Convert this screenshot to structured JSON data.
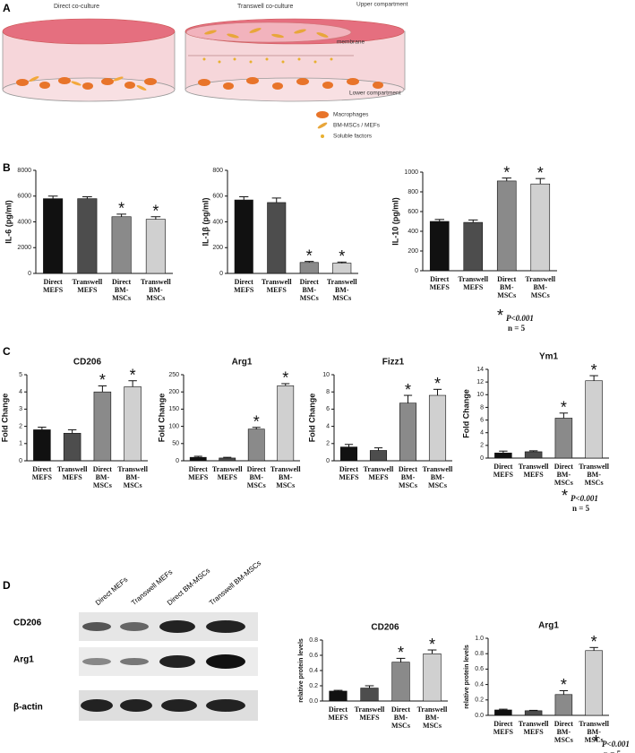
{
  "panel_labels": [
    "A",
    "B",
    "C",
    "D"
  ],
  "schematic": {
    "direct_label": "Direct co-culture",
    "transwell_label": "Transwell co-culture",
    "upper": "Upper compartment",
    "membrane": "membrane",
    "lower": "Lower compartment",
    "legend": [
      "Macrophages",
      "BM-MSCs / MEFs",
      "Soluble factors"
    ]
  },
  "blot": {
    "lanes": [
      "Direct MEFs",
      "Transwell  MEFs",
      "Direct BM-MSCs",
      "Transwell  BM-MSCs"
    ],
    "rows": [
      "CD206",
      "Arg1",
      "β-actin"
    ]
  },
  "notes": [
    {
      "symbol": "*",
      "p": "P<0.001",
      "n": "n = 5"
    },
    {
      "symbol": "*",
      "p": "P<0.001",
      "n": "n = 5"
    },
    {
      "symbol": "*",
      "p": "P<0.001",
      "n": "n = 5"
    }
  ],
  "chart_data": [
    {
      "type": "bar",
      "y_label": "IL-6 (pg/ml)",
      "categories": [
        "Direct MEFS",
        "Transwell MEFS",
        "Direct BM-MSCs",
        "Transwell BM-MSCs"
      ],
      "values": [
        5800,
        5800,
        4400,
        4200
      ],
      "errors": [
        200,
        150,
        200,
        200
      ],
      "annotations": [
        null,
        null,
        "*",
        "*"
      ],
      "colors": [
        "#111111",
        "#4d4d4d",
        "#8a8a8a",
        "#d0d0d0"
      ],
      "ylim": [
        0,
        8000
      ],
      "yticks": [
        0,
        2000,
        4000,
        6000,
        8000
      ]
    },
    {
      "type": "bar",
      "y_label": "IL-1β (pg/ml)",
      "categories": [
        "Direct MEFS",
        "Transwell MEFS",
        "Direct BM-MSCs",
        "Transwell BM-MSCs"
      ],
      "values": [
        570,
        550,
        85,
        80
      ],
      "errors": [
        25,
        35,
        8,
        8
      ],
      "annotations": [
        null,
        null,
        "*",
        "*"
      ],
      "colors": [
        "#111111",
        "#4d4d4d",
        "#8a8a8a",
        "#d0d0d0"
      ],
      "ylim": [
        0,
        800
      ],
      "yticks": [
        0,
        200,
        400,
        600,
        800
      ]
    },
    {
      "type": "bar",
      "y_label": "IL-10 (pg/ml)",
      "categories": [
        "Direct MEFS",
        "Transwell MEFS",
        "Direct BM-MSCs",
        "Transwell BM-MSCs"
      ],
      "values": [
        500,
        490,
        910,
        880
      ],
      "errors": [
        20,
        25,
        30,
        55
      ],
      "annotations": [
        null,
        null,
        "*",
        "*"
      ],
      "colors": [
        "#111111",
        "#4d4d4d",
        "#8a8a8a",
        "#d0d0d0"
      ],
      "ylim": [
        0,
        1000
      ],
      "yticks": [
        0,
        200,
        400,
        600,
        800,
        1000
      ]
    },
    {
      "type": "bar",
      "title": "CD206",
      "y_label": "Fold Change",
      "categories": [
        "Direct MEFS",
        "Transwell MEFS",
        "Direct BM-MSCs",
        "Transwell BM-MSCs"
      ],
      "values": [
        1.8,
        1.6,
        4.0,
        4.3
      ],
      "errors": [
        0.15,
        0.2,
        0.35,
        0.35
      ],
      "annotations": [
        null,
        null,
        "*",
        "*"
      ],
      "colors": [
        "#111111",
        "#4d4d4d",
        "#8a8a8a",
        "#d0d0d0"
      ],
      "ylim": [
        0,
        5
      ],
      "yticks": [
        0,
        1,
        2,
        3,
        4,
        5
      ]
    },
    {
      "type": "bar",
      "title": "Arg1",
      "y_label": "Fold Change",
      "categories": [
        "Direct MEFS",
        "Transwell MEFS",
        "Direct BM-MSCs",
        "Transwell BM-MSCs"
      ],
      "values": [
        10,
        8,
        92,
        218
      ],
      "errors": [
        3,
        2,
        5,
        6
      ],
      "annotations": [
        null,
        null,
        "*",
        "*"
      ],
      "colors": [
        "#111111",
        "#4d4d4d",
        "#8a8a8a",
        "#d0d0d0"
      ],
      "ylim": [
        0,
        250
      ],
      "yticks": [
        0,
        50,
        100,
        150,
        200,
        250
      ]
    },
    {
      "type": "bar",
      "title": "Fizz1",
      "y_label": "Fold Change",
      "categories": [
        "Direct MEFS",
        "Transwell MEFS",
        "Direct BM-MSCs",
        "Transwell BM-MSCs"
      ],
      "values": [
        1.6,
        1.2,
        6.7,
        7.6
      ],
      "errors": [
        0.3,
        0.3,
        0.9,
        0.7
      ],
      "annotations": [
        null,
        null,
        "*",
        "*"
      ],
      "colors": [
        "#111111",
        "#4d4d4d",
        "#8a8a8a",
        "#d0d0d0"
      ],
      "ylim": [
        0,
        10
      ],
      "yticks": [
        0,
        2,
        4,
        6,
        8,
        10
      ]
    },
    {
      "type": "bar",
      "title": "Ym1",
      "y_label": "Fold Change",
      "categories": [
        "Direct MEFS",
        "Transwell MEFS",
        "Direct BM-MSCs",
        "Transwell BM-MSCs"
      ],
      "values": [
        0.8,
        1.0,
        6.3,
        12.2
      ],
      "errors": [
        0.3,
        0.15,
        0.8,
        0.8
      ],
      "annotations": [
        null,
        null,
        "*",
        "*"
      ],
      "colors": [
        "#111111",
        "#4d4d4d",
        "#8a8a8a",
        "#d0d0d0"
      ],
      "ylim": [
        0,
        14
      ],
      "yticks": [
        0,
        2,
        4,
        6,
        8,
        10,
        12,
        14
      ]
    },
    {
      "type": "bar",
      "title": "CD206",
      "y_label": "relative protein levels",
      "categories": [
        "Direct MEFS",
        "Transwell MEFS",
        "Direct BM-MSCs",
        "Transwell BM-MSCs"
      ],
      "values": [
        0.13,
        0.17,
        0.51,
        0.62
      ],
      "errors": [
        0.01,
        0.03,
        0.05,
        0.05
      ],
      "annotations": [
        null,
        null,
        "*",
        "*"
      ],
      "colors": [
        "#111111",
        "#4d4d4d",
        "#8a8a8a",
        "#d0d0d0"
      ],
      "ylim": [
        0,
        0.8
      ],
      "yticks": [
        {
          "value": 0,
          "label": "0.0"
        },
        0.2,
        0.4,
        0.6,
        0.8
      ]
    },
    {
      "type": "bar",
      "title": "Arg1",
      "y_label": "relative protein levels",
      "categories": [
        "Direct MEFS",
        "Transwell MEFS",
        "Direct BM-MSCs",
        "Transwell BM-MSCs"
      ],
      "values": [
        0.07,
        0.06,
        0.27,
        0.84
      ],
      "errors": [
        0.01,
        0.005,
        0.05,
        0.04
      ],
      "annotations": [
        null,
        null,
        "*",
        "*"
      ],
      "colors": [
        "#111111",
        "#4d4d4d",
        "#8a8a8a",
        "#d0d0d0"
      ],
      "ylim": [
        0,
        1
      ],
      "yticks": [
        {
          "value": 0,
          "label": "0.0"
        },
        0.2,
        0.4,
        0.6,
        0.8,
        {
          "value": 1,
          "label": "1.0"
        }
      ]
    }
  ]
}
